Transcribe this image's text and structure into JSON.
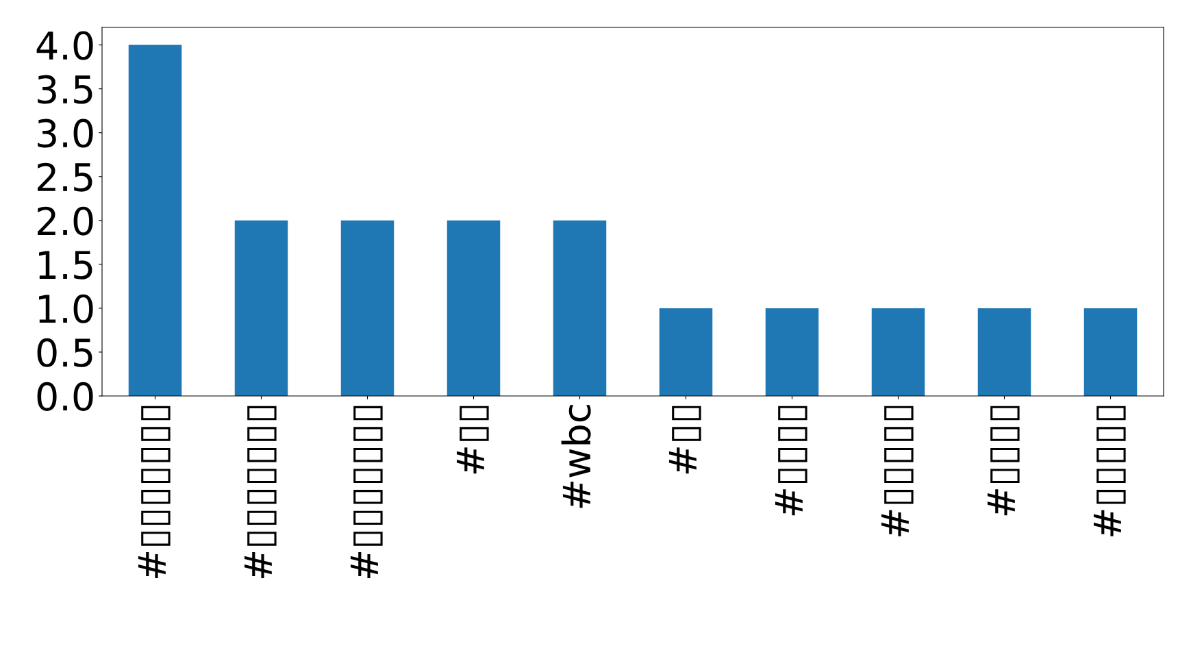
{
  "chart_data": {
    "type": "bar",
    "categories": [
      "#▯▯▯▯▯▯▯",
      "#▯▯▯▯▯▯▯",
      "#▯▯▯▯▯▯▯",
      "#▯▯",
      "#wbc",
      "#▯▯",
      "#▯▯▯▯",
      "#▯▯▯▯▯",
      "#▯▯▯▯",
      "#▯▯▯▯▯"
    ],
    "values": [
      4,
      2,
      2,
      2,
      2,
      1,
      1,
      1,
      1,
      1
    ],
    "color": "#1f77b4",
    "ylim": [
      0,
      4.2
    ],
    "yticks": [
      {
        "value": 0,
        "label": "0.0"
      },
      0.5,
      {
        "value": 1,
        "label": "1.0"
      },
      1.5,
      {
        "value": 2,
        "label": "2.0"
      },
      2.5,
      {
        "value": 3,
        "label": "3.0"
      },
      3.5,
      {
        "value": 4,
        "label": "4.0"
      }
    ],
    "grid": false
  }
}
